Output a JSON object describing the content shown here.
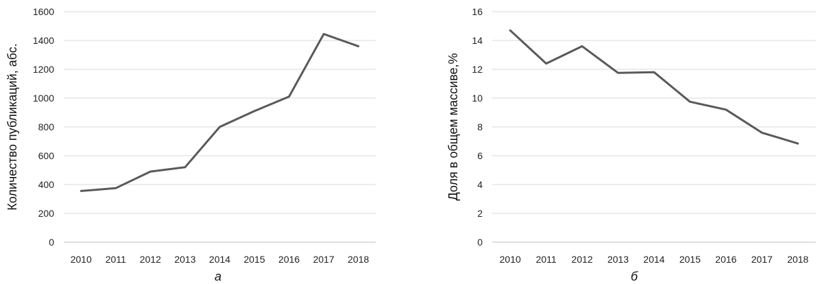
{
  "chart_data": [
    {
      "type": "line",
      "caption": "а",
      "ylabel": "Количество публикаций, абс.",
      "xlabel": "",
      "categories": [
        "2010",
        "2011",
        "2012",
        "2013",
        "2014",
        "2015",
        "2016",
        "2017",
        "2018"
      ],
      "series": [
        {
          "values": [
            355,
            375,
            490,
            520,
            800,
            910,
            1010,
            1445,
            1360
          ]
        }
      ],
      "ylim": [
        0,
        1600
      ],
      "yticks": [
        0,
        200,
        400,
        600,
        800,
        1000,
        1200,
        1400,
        1600
      ],
      "grid": true,
      "line_color": "#595959"
    },
    {
      "type": "line",
      "caption": "б",
      "ylabel": "Доля в общем массиве,%",
      "xlabel": "",
      "categories": [
        "2010",
        "2011",
        "2012",
        "2013",
        "2014",
        "2015",
        "2016",
        "2017",
        "2018"
      ],
      "series": [
        {
          "values": [
            14.7,
            12.4,
            13.6,
            11.75,
            11.8,
            9.75,
            9.2,
            7.6,
            6.85
          ]
        }
      ],
      "ylim": [
        0,
        16
      ],
      "yticks": [
        0,
        2,
        4,
        6,
        8,
        10,
        12,
        14,
        16
      ],
      "grid": true,
      "line_color": "#595959"
    }
  ]
}
